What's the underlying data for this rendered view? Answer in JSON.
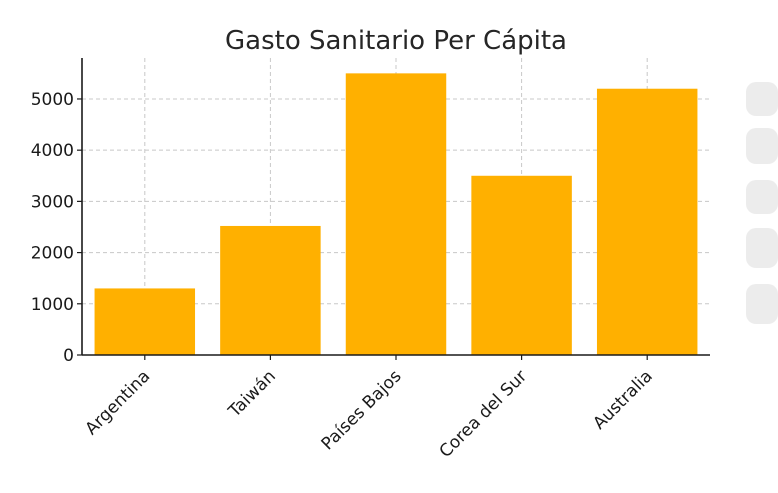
{
  "chart_data": {
    "type": "bar",
    "title": "Gasto Sanitario Per Cápita",
    "xlabel": "",
    "ylabel": "",
    "categories": [
      "Argentina",
      "Taiwán",
      "Países Bajos",
      "Corea del Sur",
      "Australia"
    ],
    "values": [
      1300,
      2520,
      5500,
      3500,
      5200
    ],
    "ylim": [
      0,
      5800
    ],
    "yticks": [
      0,
      1000,
      2000,
      3000,
      4000,
      5000
    ],
    "grid": true,
    "bar_color": "#FFB000"
  }
}
